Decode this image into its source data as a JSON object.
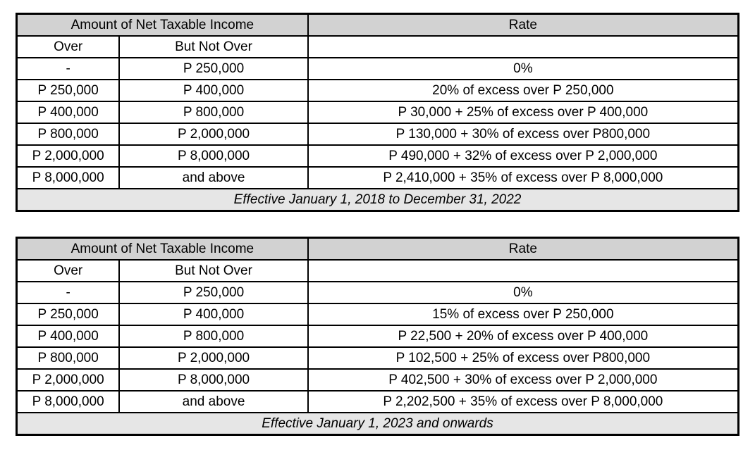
{
  "colors": {
    "header_bg": "#d2d2d2",
    "footer_bg": "#e6e6e6",
    "border": "#000000",
    "text": "#000000",
    "page_bg": "#ffffff"
  },
  "tables": [
    {
      "header": {
        "amount_group_label": "Amount of Net Taxable Income",
        "rate_label": "Rate",
        "over_label": "Over",
        "but_not_over_label": "But Not Over"
      },
      "rows": [
        {
          "over": "-",
          "but_not_over": "P 250,000",
          "rate": "0%"
        },
        {
          "over": "P 250,000",
          "but_not_over": "P 400,000",
          "rate": "20% of excess over P 250,000"
        },
        {
          "over": "P 400,000",
          "but_not_over": "P 800,000",
          "rate": "P 30,000 + 25% of excess over P 400,000"
        },
        {
          "over": "P 800,000",
          "but_not_over": "P 2,000,000",
          "rate": "P 130,000 + 30% of excess over P800,000"
        },
        {
          "over": "P 2,000,000",
          "but_not_over": "P 8,000,000",
          "rate": "P 490,000 + 32% of excess over P 2,000,000"
        },
        {
          "over": "P 8,000,000",
          "but_not_over": "and above",
          "rate": "P 2,410,000 + 35% of excess over P 8,000,000"
        }
      ],
      "footer": "Effective January 1, 2018 to December 31, 2022"
    },
    {
      "header": {
        "amount_group_label": "Amount of Net Taxable Income",
        "rate_label": "Rate",
        "over_label": "Over",
        "but_not_over_label": "But Not Over"
      },
      "rows": [
        {
          "over": "-",
          "but_not_over": "P 250,000",
          "rate": "0%"
        },
        {
          "over": "P 250,000",
          "but_not_over": "P 400,000",
          "rate": "15% of excess over P 250,000"
        },
        {
          "over": "P 400,000",
          "but_not_over": "P 800,000",
          "rate": "P 22,500 + 20% of excess over P 400,000"
        },
        {
          "over": "P 800,000",
          "but_not_over": "P 2,000,000",
          "rate": "P 102,500 + 25% of excess over P800,000"
        },
        {
          "over": "P 2,000,000",
          "but_not_over": "P 8,000,000",
          "rate": "P 402,500 + 30% of excess over P 2,000,000"
        },
        {
          "over": "P 8,000,000",
          "but_not_over": "and above",
          "rate": "P 2,202,500 + 35% of excess over P 8,000,000"
        }
      ],
      "footer": "Effective January 1, 2023 and onwards"
    }
  ]
}
